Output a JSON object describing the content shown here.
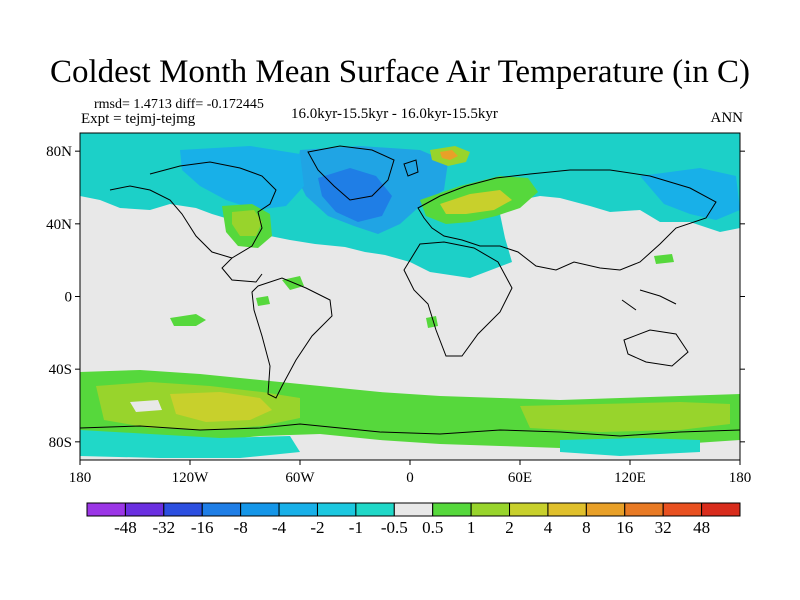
{
  "header": {
    "title": "Coldest Month Mean Surface Air Temperature (in C)",
    "stats": "rmsd= 1.4713 diff= -0.172445",
    "expt": "Expt = tejmj-tejmg",
    "period": "16.0kyr-15.5kyr - 16.0kyr-15.5kyr",
    "season": "ANN"
  },
  "map": {
    "lon_range": [
      -180,
      180
    ],
    "lat_range": [
      -90,
      90
    ],
    "lat_ticks": [
      {
        "value": 80,
        "label": "80N"
      },
      {
        "value": 40,
        "label": "40N"
      },
      {
        "value": 0,
        "label": "0"
      },
      {
        "value": -40,
        "label": "40S"
      },
      {
        "value": -80,
        "label": "80S"
      }
    ],
    "lon_ticks": [
      {
        "value": -180,
        "label": "180"
      },
      {
        "value": -120,
        "label": "120W"
      },
      {
        "value": -60,
        "label": "60W"
      },
      {
        "value": 0,
        "label": "0"
      },
      {
        "value": 60,
        "label": "60E"
      },
      {
        "value": 120,
        "label": "120E"
      },
      {
        "value": 180,
        "label": "180"
      }
    ],
    "background_color": "#e8e8e8"
  },
  "colorbar": {
    "colors": [
      "#9b36e6",
      "#6a2fe0",
      "#2c4fe0",
      "#1f7ee6",
      "#1596e8",
      "#18b0e8",
      "#1cc8e0",
      "#20d8c8",
      "#e8e8e8",
      "#56d83c",
      "#98d42c",
      "#c8d02c",
      "#e0c02c",
      "#e8a028",
      "#e87a24",
      "#e85020",
      "#d82c1c"
    ],
    "labels": [
      "-48",
      "-32",
      "-16",
      "-8",
      "-4",
      "-2",
      "-1",
      "-0.5",
      "0.5",
      "1",
      "2",
      "4",
      "8",
      "16",
      "32",
      "48"
    ]
  }
}
